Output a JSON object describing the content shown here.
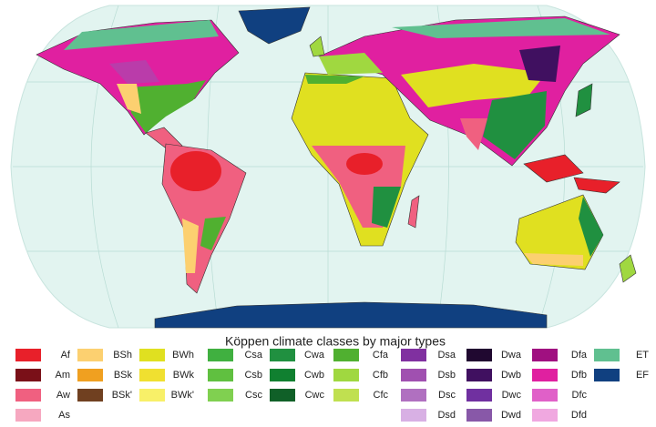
{
  "legend": {
    "title": "Köppen climate classes by major types",
    "columns": [
      [
        {
          "label": "Af",
          "color": "#e8202a"
        },
        {
          "label": "Am",
          "color": "#7a1018"
        },
        {
          "label": "Aw",
          "color": "#f06080"
        },
        {
          "label": "As",
          "color": "#f6a8c0"
        }
      ],
      [
        {
          "label": "BSh",
          "color": "#fcd070"
        },
        {
          "label": "BSk",
          "color": "#f0a020"
        },
        {
          "label": "BSk'",
          "color": "#704020"
        }
      ],
      [
        {
          "label": "BWh",
          "color": "#e0e020"
        },
        {
          "label": "BWk",
          "color": "#f0e030"
        },
        {
          "label": "BWk'",
          "color": "#f8f068"
        }
      ],
      [
        {
          "label": "Csa",
          "color": "#40b040"
        },
        {
          "label": "Csb",
          "color": "#60c040"
        },
        {
          "label": "Csc",
          "color": "#80d050"
        }
      ],
      [
        {
          "label": "Cwa",
          "color": "#209040"
        },
        {
          "label": "Cwb",
          "color": "#108030"
        },
        {
          "label": "Cwc",
          "color": "#106028"
        }
      ],
      [
        {
          "label": "Cfa",
          "color": "#50b030"
        },
        {
          "label": "Cfb",
          "color": "#a0d840"
        },
        {
          "label": "Cfc",
          "color": "#c0e050"
        }
      ],
      [
        {
          "label": "Dsa",
          "color": "#8030a0"
        },
        {
          "label": "Dsb",
          "color": "#a050b0"
        },
        {
          "label": "Dsc",
          "color": "#b070c0"
        },
        {
          "label": "Dsd",
          "color": "#d8b0e4"
        }
      ],
      [
        {
          "label": "Dwa",
          "color": "#200830"
        },
        {
          "label": "Dwb",
          "color": "#401060"
        },
        {
          "label": "Dwc",
          "color": "#7030a0"
        },
        {
          "label": "Dwd",
          "color": "#8858a8"
        }
      ],
      [
        {
          "label": "Dfa",
          "color": "#a01080"
        },
        {
          "label": "Dfb",
          "color": "#e020a0"
        },
        {
          "label": "Dfc",
          "color": "#e060c8"
        },
        {
          "label": "Dfd",
          "color": "#f0a8e0"
        }
      ],
      [
        {
          "label": "ET",
          "color": "#60c090"
        },
        {
          "label": "EF",
          "color": "#104080"
        }
      ]
    ]
  }
}
